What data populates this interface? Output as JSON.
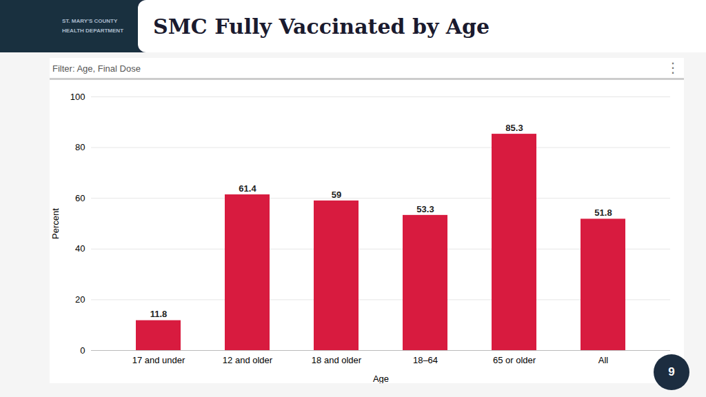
{
  "chart_data": {
    "type": "bar",
    "title": "SMC Fully Vaccinated by Age",
    "subtitle": "Filter: Age, Final Dose",
    "annotations": [
      "ST. MARY'S COUNTY",
      "HEALTH DEPARTMENT",
      "⋮",
      "9"
    ],
    "categories": [
      "17 and under",
      "12 and older",
      "18 and older",
      "18–64",
      "65 or older",
      "All"
    ],
    "values": [
      11.8,
      61.4,
      59.0,
      53.3,
      85.3,
      51.8
    ],
    "color": "#D81B3F",
    "xlabel": "Age",
    "ylabel": "Percent",
    "ylim": [
      0,
      100
    ],
    "yticks": [
      0,
      20,
      40,
      60,
      80,
      100
    ],
    "grid": true,
    "data_labels": true
  }
}
